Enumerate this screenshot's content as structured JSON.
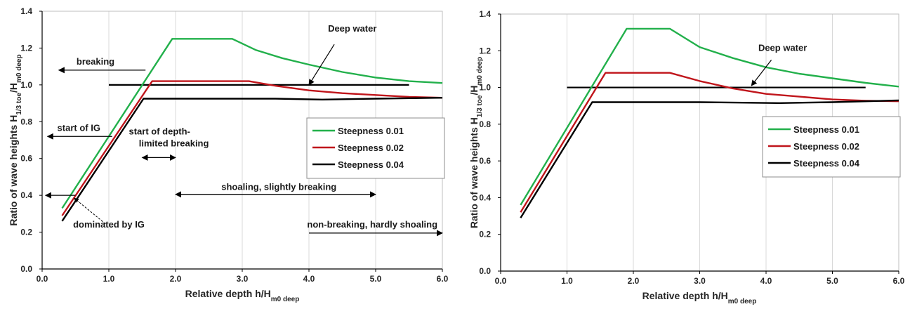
{
  "chart_data": [
    {
      "type": "line",
      "xlabel": "Relative depth h/H",
      "xlabel_sub": "m0 deep",
      "ylabel": "Ratio of wave heights H",
      "ylabel_sub1": "1/3 toe",
      "ylabel_mid": "/H",
      "ylabel_sub2": "m0 deep",
      "xlim": [
        0,
        6
      ],
      "ylim": [
        0,
        1.4
      ],
      "xticks": [
        "0.0",
        "1.0",
        "2.0",
        "3.0",
        "4.0",
        "5.0",
        "6.0"
      ],
      "yticks": [
        "0.0",
        "0.2",
        "0.4",
        "0.6",
        "0.8",
        "1.0",
        "1.2",
        "1.4"
      ],
      "grid": "vertical",
      "legend": {
        "position": "center-right",
        "entries": [
          "Steepness 0.01",
          "Steepness 0.02",
          "Steepness 0.04"
        ]
      },
      "series": [
        {
          "name": "Steepness 0.01",
          "color": "#22b04b",
          "x": [
            0.3,
            1.95,
            2.85,
            3.2,
            3.6,
            4.0,
            4.5,
            5.0,
            5.5,
            6.0
          ],
          "y": [
            0.33,
            1.25,
            1.25,
            1.19,
            1.145,
            1.11,
            1.07,
            1.04,
            1.02,
            1.01
          ]
        },
        {
          "name": "Steepness 0.02",
          "color": "#c0151b",
          "x": [
            0.3,
            1.65,
            3.1,
            3.5,
            4.0,
            4.5,
            5.0,
            5.5,
            6.0
          ],
          "y": [
            0.29,
            1.02,
            1.02,
            0.995,
            0.97,
            0.955,
            0.945,
            0.935,
            0.93
          ]
        },
        {
          "name": "Steepness 0.04",
          "color": "#000000",
          "x": [
            0.3,
            1.52,
            3.5,
            4.2,
            5.0,
            6.0
          ],
          "y": [
            0.26,
            0.925,
            0.925,
            0.92,
            0.925,
            0.93
          ]
        }
      ],
      "deep_water_line": {
        "x": [
          1.0,
          5.5
        ],
        "y": 1.0,
        "color": "#000000"
      },
      "annotations": [
        {
          "text": "Deep water",
          "x": 4.65,
          "y": 1.29,
          "arrow_to": [
            4.0,
            1.0
          ],
          "arrow_from": [
            4.38,
            1.22
          ],
          "align": "middle"
        },
        {
          "text": "breaking",
          "x": 0.8,
          "y": 1.11,
          "align": "middle",
          "arrow": {
            "x1": 1.55,
            "x2": 0.25,
            "y": 1.08
          }
        },
        {
          "text": "start of IG",
          "x": 0.55,
          "y": 0.75,
          "align": "middle",
          "arrow": {
            "x1": 1.05,
            "x2": 0.08,
            "y": 0.72
          }
        },
        {
          "text": "start of depth-",
          "x": 1.3,
          "y": 0.73,
          "align": "start"
        },
        {
          "text": "limited breaking",
          "x": 1.45,
          "y": 0.665,
          "align": "start"
        },
        {
          "text": "shoaling, slightly breaking",
          "x": 3.55,
          "y": 0.43,
          "align": "middle"
        },
        {
          "text": "dominated by IG",
          "x": 1.0,
          "y": 0.225,
          "align": "middle"
        },
        {
          "text": "non-breaking, hardly shoaling",
          "x": 4.95,
          "y": 0.225,
          "align": "middle"
        }
      ],
      "arrows": [
        {
          "x1": 1.5,
          "x2": 2.0,
          "y": 0.605,
          "double": true
        },
        {
          "x1": 2.0,
          "x2": 5.0,
          "y": 0.405,
          "double": true
        },
        {
          "x1": 4.0,
          "x2": 6.0,
          "y": 0.195,
          "double": false
        },
        {
          "x1": 0.5,
          "x2": 0.05,
          "y": 0.4,
          "double": false
        }
      ]
    },
    {
      "type": "line",
      "xlabel": "Relative depth h/H",
      "xlabel_sub": "m0 deep",
      "ylabel": "Ratio of wave heights H",
      "ylabel_sub1": "1/3 toe",
      "ylabel_mid": "/H",
      "ylabel_sub2": "m0 deep",
      "xlim": [
        0,
        6
      ],
      "ylim": [
        0,
        1.4
      ],
      "xticks": [
        "0.0",
        "1.0",
        "2.0",
        "3.0",
        "4.0",
        "5.0",
        "6.0"
      ],
      "yticks": [
        "0.0",
        "0.2",
        "0.4",
        "0.6",
        "0.8",
        "1.0",
        "1.2",
        "1.4"
      ],
      "grid": "vertical",
      "legend": {
        "position": "center-right",
        "entries": [
          "Steepness 0.01",
          "Steepness 0.02",
          "Steepness 0.04"
        ]
      },
      "series": [
        {
          "name": "Steepness 0.01",
          "color": "#22b04b",
          "x": [
            0.3,
            1.9,
            2.55,
            3.0,
            3.5,
            4.0,
            4.5,
            5.0,
            5.5,
            6.0
          ],
          "y": [
            0.36,
            1.32,
            1.32,
            1.22,
            1.16,
            1.11,
            1.075,
            1.05,
            1.025,
            1.005
          ]
        },
        {
          "name": "Steepness 0.02",
          "color": "#c0151b",
          "x": [
            0.3,
            1.58,
            2.55,
            3.0,
            3.5,
            4.0,
            4.5,
            5.0,
            5.5,
            6.0
          ],
          "y": [
            0.32,
            1.08,
            1.08,
            1.035,
            0.995,
            0.965,
            0.95,
            0.935,
            0.928,
            0.925
          ]
        },
        {
          "name": "Steepness 0.04",
          "color": "#000000",
          "x": [
            0.3,
            1.38,
            3.0,
            4.2,
            5.0,
            6.0
          ],
          "y": [
            0.29,
            0.92,
            0.92,
            0.915,
            0.92,
            0.93
          ]
        }
      ],
      "deep_water_line": {
        "x": [
          1.0,
          5.5
        ],
        "y": 1.0,
        "color": "#000000"
      },
      "annotations": [
        {
          "text": "Deep water",
          "x": 4.25,
          "y": 1.2,
          "arrow_to": [
            3.78,
            1.01
          ],
          "arrow_from": [
            4.08,
            1.15
          ],
          "align": "middle"
        }
      ],
      "arrows": []
    }
  ]
}
